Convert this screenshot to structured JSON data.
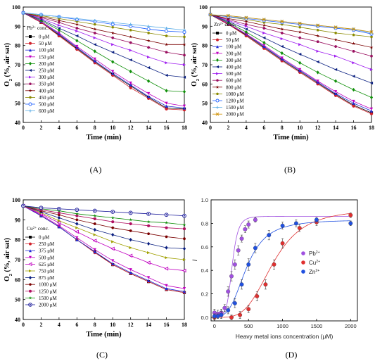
{
  "chart_data": [
    {
      "id": "A",
      "type": "line",
      "panel_label": "(A)",
      "xlabel": "Time (min)",
      "ylabel_main": "O",
      "ylabel_sub": "2",
      "ylabel_rest": " (%, air sat)",
      "xlim": [
        0,
        18
      ],
      "ylim": [
        40,
        100
      ],
      "xticks": [
        "0",
        "2",
        "4",
        "6",
        "8",
        "10",
        "12",
        "14",
        "16",
        "18"
      ],
      "yticks": [
        "40",
        "50",
        "60",
        "70",
        "80",
        "90",
        "100"
      ],
      "legend_title_main": "Pb",
      "legend_title_sup": "2+",
      "legend_title_rest": " conc.",
      "x": [
        0,
        2,
        4,
        6,
        8,
        10,
        12,
        14,
        16,
        18
      ],
      "series": [
        {
          "name": "0 μM",
          "color": "#000000",
          "marker": "square",
          "values": [
            97,
            92,
            85.5,
            78.5,
            71.5,
            65,
            59,
            53,
            47.5,
            47
          ]
        },
        {
          "name": "50 μM",
          "color": "#d0202a",
          "marker": "circle",
          "values": [
            97,
            92,
            85,
            78,
            71,
            64.5,
            58,
            52.5,
            47,
            46.5
          ]
        },
        {
          "name": "100 μM",
          "color": "#1f2ad6",
          "marker": "triangle",
          "values": [
            97,
            92.5,
            86,
            79,
            72,
            65.5,
            59.5,
            53.5,
            48.5,
            47.5
          ]
        },
        {
          "name": "150 μM",
          "color": "#c000c0",
          "marker": "tri-down",
          "values": [
            97,
            92.5,
            86.5,
            79.5,
            73,
            66.5,
            60.5,
            55,
            50,
            48.5
          ]
        },
        {
          "name": "200 μM",
          "color": "#10900a",
          "marker": "diamond",
          "values": [
            97,
            93,
            88,
            82.5,
            77,
            71.5,
            66.5,
            61.5,
            56.5,
            56
          ]
        },
        {
          "name": "250 μM",
          "color": "#0a1f80",
          "marker": "tri-left",
          "values": [
            97,
            93.5,
            89,
            85,
            80.5,
            76.5,
            72.5,
            68.5,
            64.5,
            63.5
          ]
        },
        {
          "name": "300 μM",
          "color": "#a020f0",
          "marker": "tri-right",
          "values": [
            97,
            94,
            90.5,
            87.5,
            84,
            80.5,
            77.5,
            74,
            71,
            70
          ]
        },
        {
          "name": "350 μM",
          "color": "#9a1060",
          "marker": "hexagon",
          "values": [
            97,
            94.5,
            92,
            89,
            86.5,
            84,
            81.5,
            79,
            76.5,
            75
          ]
        },
        {
          "name": "400 μM",
          "color": "#7a0000",
          "marker": "star",
          "values": [
            97,
            95,
            93,
            91,
            88.5,
            86.5,
            84.5,
            82.5,
            80.5,
            80.5
          ]
        },
        {
          "name": "450 μM",
          "color": "#8a8a00",
          "marker": "pentagon",
          "values": [
            97,
            95.5,
            94,
            92.5,
            91,
            89.5,
            88,
            86.5,
            85,
            84.5
          ]
        },
        {
          "name": "500 μM",
          "color": "#2060ff",
          "marker": "circle-open",
          "values": [
            97,
            96,
            95,
            93.5,
            92.5,
            91,
            90,
            88.5,
            87.5,
            87
          ]
        },
        {
          "name": "600 μM",
          "color": "#60b0e8",
          "marker": "plus",
          "values": [
            97,
            96,
            95,
            94,
            93,
            92,
            91,
            90,
            89,
            88
          ]
        }
      ]
    },
    {
      "id": "B",
      "type": "line",
      "panel_label": "(B)",
      "xlabel": "Time (min)",
      "ylabel_main": "O",
      "ylabel_sub": "2",
      "ylabel_rest": " (%, air sat)",
      "xlim": [
        0,
        18
      ],
      "ylim": [
        40,
        100
      ],
      "xticks": [
        "0",
        "2",
        "4",
        "6",
        "8",
        "10",
        "12",
        "14",
        "16",
        "18"
      ],
      "yticks": [
        "40",
        "50",
        "60",
        "70",
        "80",
        "90",
        "100"
      ],
      "legend_title_main": "Zn",
      "legend_title_sup": "2+",
      "legend_title_rest": " conc.",
      "x": [
        0,
        2,
        4,
        6,
        8,
        10,
        12,
        14,
        16,
        18
      ],
      "series": [
        {
          "name": "0 μM",
          "color": "#000000",
          "marker": "square",
          "values": [
            96,
            91,
            85.5,
            79,
            72.5,
            66.5,
            60.5,
            54.5,
            49,
            45
          ]
        },
        {
          "name": "50 μM",
          "color": "#d0202a",
          "marker": "circle",
          "values": [
            96,
            91,
            85,
            78.5,
            72,
            66,
            60,
            54,
            48.5,
            44.5
          ]
        },
        {
          "name": "100 μM",
          "color": "#1f2ad6",
          "marker": "triangle",
          "values": [
            96,
            91.5,
            86,
            79.5,
            73,
            67,
            61,
            55,
            50,
            46
          ]
        },
        {
          "name": "200 μM",
          "color": "#c000c0",
          "marker": "tri-down",
          "values": [
            96,
            91.5,
            86,
            80,
            73.5,
            67.5,
            61.5,
            56,
            51,
            47
          ]
        },
        {
          "name": "300 μM",
          "color": "#10900a",
          "marker": "diamond",
          "values": [
            96,
            92,
            87,
            81.5,
            76,
            71,
            66,
            61.5,
            57,
            53
          ]
        },
        {
          "name": "400 μM",
          "color": "#0a1f80",
          "marker": "tri-left",
          "values": [
            96,
            92.5,
            88.5,
            84,
            79.5,
            75.5,
            71.5,
            67.5,
            64,
            60.5
          ]
        },
        {
          "name": "500 μM",
          "color": "#a020f0",
          "marker": "tri-right",
          "values": [
            96,
            93,
            90,
            86.5,
            83.5,
            80.5,
            77,
            74.5,
            71,
            67.5
          ]
        },
        {
          "name": "600 μM",
          "color": "#9a1060",
          "marker": "hexagon",
          "values": [
            96,
            93.5,
            91,
            89,
            86.5,
            84,
            82,
            79.5,
            77,
            74.5
          ]
        },
        {
          "name": "800 μM",
          "color": "#7a0000",
          "marker": "star",
          "values": [
            96,
            94,
            92.5,
            90.5,
            88.5,
            87,
            85,
            83,
            81,
            79
          ]
        },
        {
          "name": "1000 μM",
          "color": "#8a8a00",
          "marker": "pentagon",
          "values": [
            96,
            95,
            93.5,
            92,
            91,
            89.5,
            88,
            86.5,
            85.5,
            84.5
          ]
        },
        {
          "name": "1200 μM",
          "color": "#2060ff",
          "marker": "circle-open",
          "values": [
            96,
            95,
            94,
            93,
            92,
            91,
            90,
            89,
            88,
            86
          ]
        },
        {
          "name": "1500 μM",
          "color": "#60b0e8",
          "marker": "plus",
          "values": [
            96,
            95.5,
            94.5,
            93.5,
            92.5,
            91.5,
            90.5,
            89.5,
            88.5,
            86.5
          ]
        },
        {
          "name": "2000 μM",
          "color": "#d09000",
          "marker": "x",
          "values": [
            96,
            95.5,
            94.5,
            93.5,
            92.5,
            91.5,
            90.5,
            89.5,
            88.5,
            87
          ]
        }
      ]
    },
    {
      "id": "C",
      "type": "line",
      "panel_label": "(C)",
      "xlabel": "Time (min)",
      "ylabel_main": "O",
      "ylabel_sub": "2",
      "ylabel_rest": " (%, air sat)",
      "xlim": [
        0,
        18
      ],
      "ylim": [
        40,
        100
      ],
      "xticks": [
        "0",
        "2",
        "4",
        "6",
        "8",
        "10",
        "12",
        "14",
        "16",
        "18"
      ],
      "yticks": [
        "40",
        "50",
        "60",
        "70",
        "80",
        "90",
        "100"
      ],
      "legend_title_main": "Cu",
      "legend_title_sup": "2+",
      "legend_title_rest": " conc.",
      "x": [
        0,
        2,
        4,
        6,
        8,
        10,
        12,
        14,
        16,
        18
      ],
      "series": [
        {
          "name": "0 μM",
          "color": "#000000",
          "marker": "square",
          "values": [
            97,
            92,
            86.5,
            80,
            74,
            67.5,
            63,
            59,
            55,
            53.5
          ]
        },
        {
          "name": "250 μM",
          "color": "#d0202a",
          "marker": "circle",
          "values": [
            97,
            92,
            86.5,
            80,
            73.5,
            67.5,
            63,
            59,
            55,
            53.5
          ]
        },
        {
          "name": "375 μM",
          "color": "#1f2ad6",
          "marker": "triangle",
          "values": [
            97,
            92,
            86.5,
            80,
            74,
            68,
            63.5,
            59.5,
            55.5,
            54
          ]
        },
        {
          "name": "500 μM",
          "color": "#c000c0",
          "marker": "tri-down",
          "values": [
            97,
            92.5,
            87,
            81,
            75,
            69.5,
            65,
            61,
            57,
            55.5
          ]
        },
        {
          "name": "625 μM",
          "color": "#c000c0",
          "marker": "tri-left-open",
          "values": [
            97,
            93,
            88.5,
            84,
            79.5,
            75.5,
            72,
            68.5,
            65.5,
            64.5
          ]
        },
        {
          "name": "750 μM",
          "color": "#a0a000",
          "marker": "tri-right",
          "values": [
            97,
            93.5,
            89.5,
            86,
            82.5,
            79,
            76,
            73.5,
            71,
            70
          ]
        },
        {
          "name": "875 μM",
          "color": "#0a1f80",
          "marker": "diamond",
          "values": [
            97,
            94,
            91,
            88,
            85,
            82.5,
            80,
            78,
            76,
            75.5
          ]
        },
        {
          "name": "1000 μM",
          "color": "#7a0000",
          "marker": "hexagon",
          "values": [
            97,
            94.5,
            92.5,
            90,
            88,
            86,
            84.5,
            83,
            81.5,
            80.5
          ]
        },
        {
          "name": "1250 μM",
          "color": "#b01060",
          "marker": "circle",
          "values": [
            97,
            95,
            93.5,
            92,
            90.5,
            89,
            88,
            87,
            86,
            85.5
          ]
        },
        {
          "name": "1500 μM",
          "color": "#10900a",
          "marker": "star",
          "values": [
            97,
            95.5,
            94.5,
            93,
            92,
            91,
            90,
            89,
            88.5,
            87.5
          ]
        },
        {
          "name": "2000 μM",
          "color": "#1a1a9a",
          "marker": "circle-dot",
          "values": [
            97,
            96,
            95.5,
            95,
            94.5,
            94,
            93.5,
            93,
            92.5,
            92
          ]
        }
      ]
    },
    {
      "id": "D",
      "type": "scatter",
      "panel_label": "(D)",
      "xlabel": "Heavy metal ions concentration (μM)",
      "ylabel": "I",
      "xlim": [
        -50,
        2100
      ],
      "ylim": [
        -0.03,
        1.0
      ],
      "xticks": [
        "0",
        "500",
        "1000",
        "1500",
        "2000"
      ],
      "yticks": [
        "0.0",
        "0.2",
        "0.4",
        "0.6",
        "0.8",
        "1.0"
      ],
      "series": [
        {
          "name_main": "Pb",
          "name_sup": "2+",
          "color": "#a050e0",
          "x": [
            0,
            50,
            100,
            150,
            200,
            250,
            300,
            350,
            400,
            450,
            500,
            600
          ],
          "y": [
            0.04,
            0.03,
            0.04,
            0.08,
            0.22,
            0.35,
            0.45,
            0.57,
            0.67,
            0.75,
            0.79,
            0.83
          ],
          "err": [
            0.03,
            0.03,
            0.03,
            0.03,
            0.04,
            0.04,
            0.04,
            0.04,
            0.03,
            0.03,
            0.03,
            0.02
          ]
        },
        {
          "name_main": "Cu",
          "name_sup": "2+",
          "color": "#e03030",
          "x": [
            0,
            250,
            375,
            500,
            625,
            750,
            875,
            1000,
            1250,
            1500,
            2000
          ],
          "y": [
            0.0,
            0.0,
            0.02,
            0.07,
            0.18,
            0.28,
            0.45,
            0.63,
            0.76,
            0.81,
            0.87
          ],
          "err": [
            0.02,
            0.02,
            0.03,
            0.03,
            0.04,
            0.04,
            0.04,
            0.04,
            0.03,
            0.03,
            0.02
          ]
        },
        {
          "name_main": "Zn",
          "name_sup": "2+",
          "color": "#2050e0",
          "x": [
            0,
            50,
            100,
            200,
            300,
            400,
            500,
            600,
            800,
            1000,
            1200,
            1500,
            2000
          ],
          "y": [
            0.01,
            0.01,
            0.02,
            0.06,
            0.12,
            0.28,
            0.45,
            0.59,
            0.7,
            0.78,
            0.8,
            0.83,
            0.8
          ],
          "err": [
            0.02,
            0.02,
            0.03,
            0.03,
            0.04,
            0.04,
            0.05,
            0.04,
            0.04,
            0.03,
            0.03,
            0.02,
            0.02
          ]
        }
      ]
    }
  ]
}
